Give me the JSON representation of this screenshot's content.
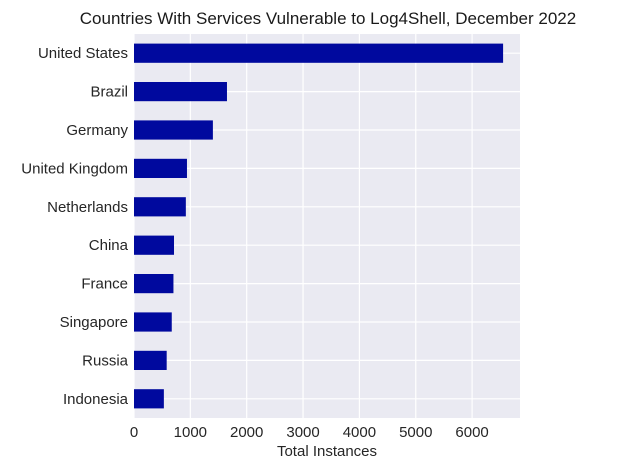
{
  "chart_data": {
    "type": "bar",
    "orientation": "horizontal",
    "title": "Countries With Services Vulnerable to Log4Shell, December 2022",
    "xlabel": "Total Instances",
    "ylabel": "",
    "categories": [
      "United States",
      "Brazil",
      "Germany",
      "United Kingdom",
      "Netherlands",
      "China",
      "France",
      "Singapore",
      "Russia",
      "Indonesia"
    ],
    "values": [
      6550,
      1650,
      1400,
      940,
      920,
      710,
      700,
      670,
      580,
      530
    ],
    "xlim": [
      0,
      6850
    ],
    "xticks": [
      0,
      1000,
      2000,
      3000,
      4000,
      5000,
      6000
    ],
    "bar_color": "#00099e",
    "background_color": "#eaeaf2",
    "grid": true
  }
}
